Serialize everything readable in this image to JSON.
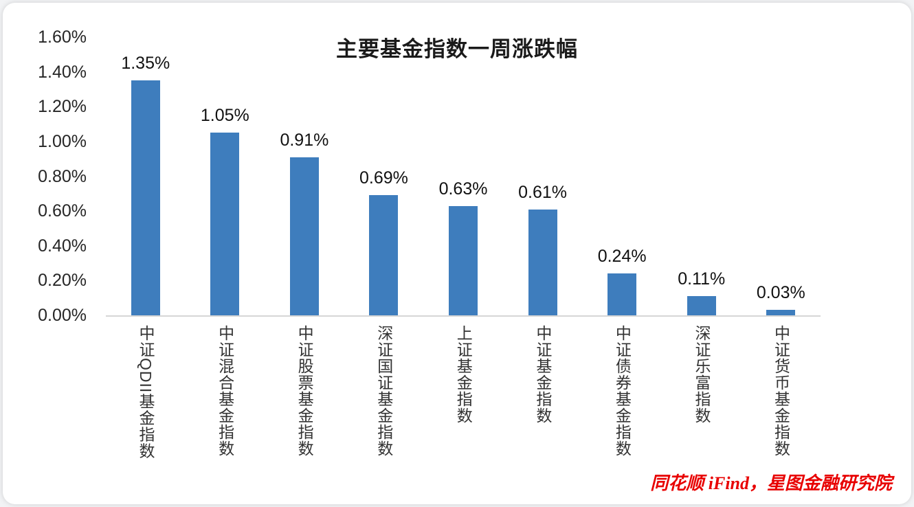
{
  "page": {
    "background": "#ffffff"
  },
  "source_note": {
    "text": "同花顺 iFind，星图金融研究院",
    "color": "#e80000"
  },
  "chart_data": {
    "type": "bar",
    "title": "主要基金指数一周涨跌幅",
    "categories": [
      "中证QDII基金指数",
      "中证混合基金指数",
      "中证股票基金指数",
      "深证国证基金指数",
      "上证基金指数",
      "中证基金指数",
      "中证债券基金指数",
      "深证乐富指数",
      "中证货币基金指数"
    ],
    "values": [
      1.35,
      1.05,
      0.91,
      0.69,
      0.63,
      0.61,
      0.24,
      0.11,
      0.03
    ],
    "value_labels": [
      "1.35%",
      "1.05%",
      "0.91%",
      "0.69%",
      "0.63%",
      "0.61%",
      "0.24%",
      "0.11%",
      "0.03%"
    ],
    "y_ticks": [
      "1.60%",
      "1.40%",
      "1.20%",
      "1.00%",
      "0.80%",
      "0.60%",
      "0.40%",
      "0.20%",
      "0.00%"
    ],
    "ylim": [
      0,
      1.6
    ],
    "bar_color": "#3E7DBD",
    "grid": false,
    "legend": "none",
    "xlabel": "",
    "ylabel": ""
  }
}
